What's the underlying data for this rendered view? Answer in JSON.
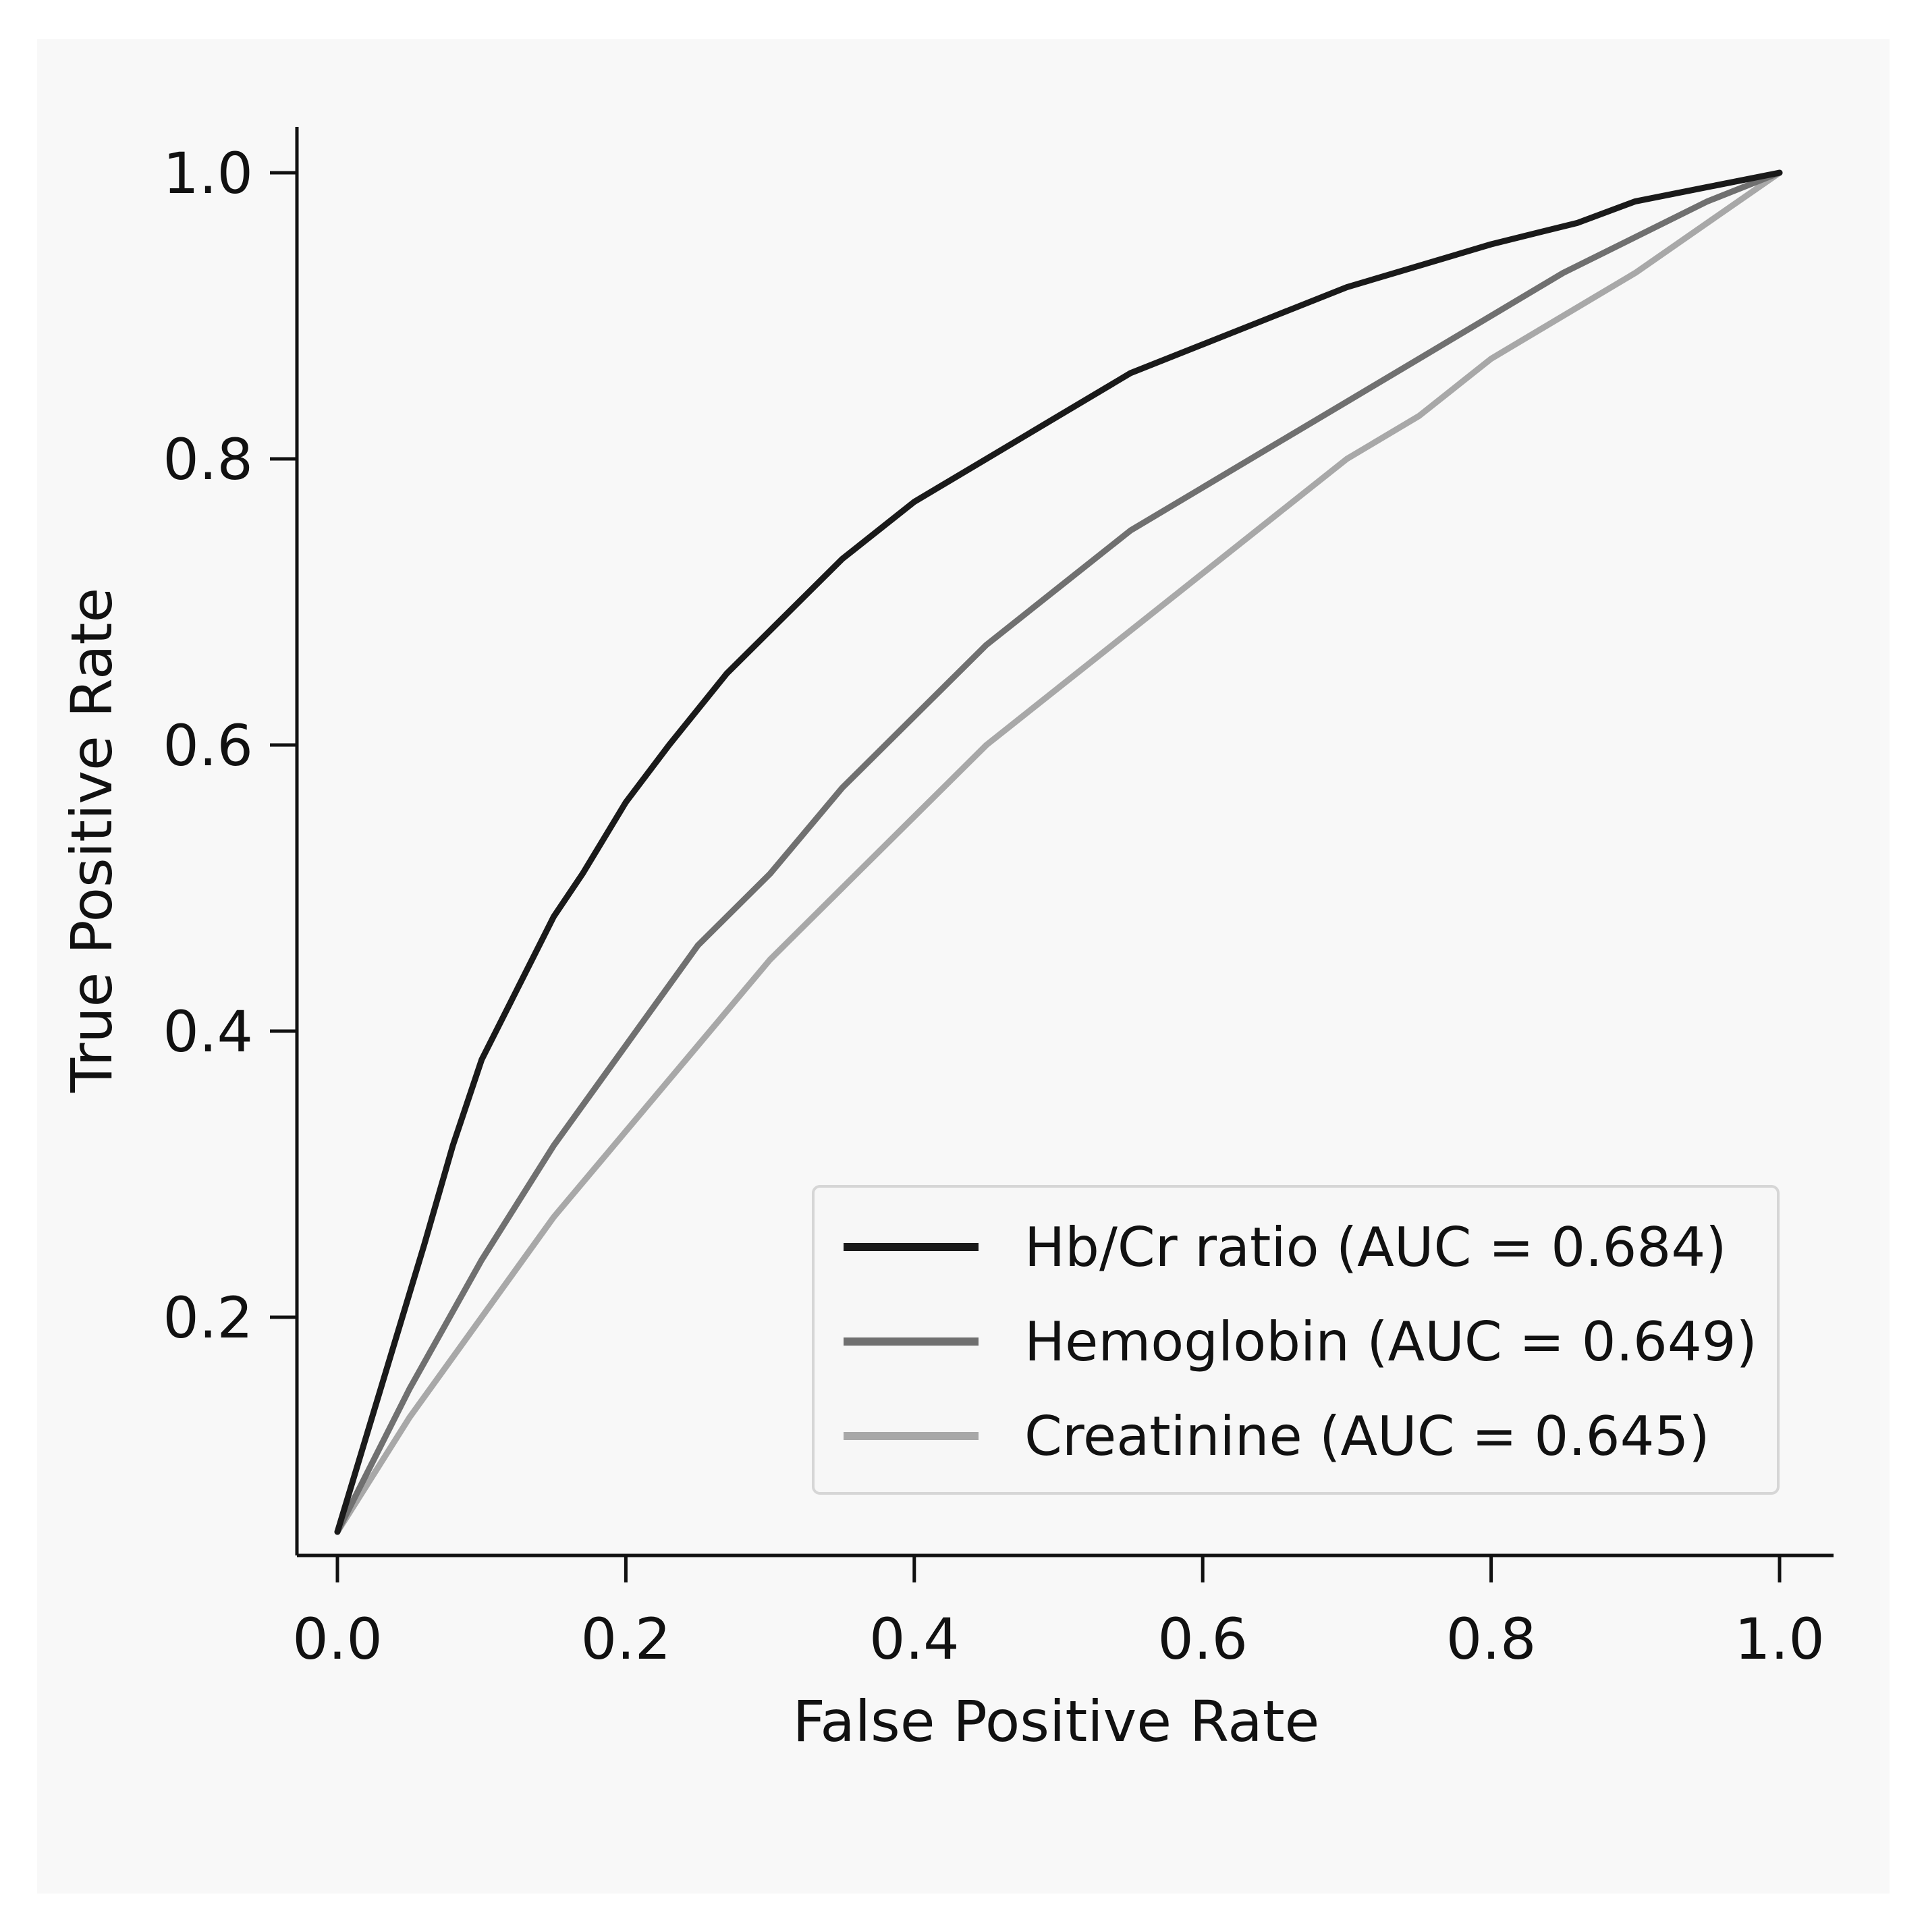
{
  "chart_data": {
    "type": "line",
    "title": "",
    "xlabel": "False Positive Rate",
    "ylabel": "True Positive Rate",
    "xlim": [
      0.0,
      1.0
    ],
    "ylim": [
      0.05,
      1.0
    ],
    "xticks": [
      0.0,
      0.2,
      0.4,
      0.6,
      0.8,
      1.0
    ],
    "xtick_labels": [
      "0.0",
      "0.2",
      "0.4",
      "0.6",
      "0.8",
      "1.0"
    ],
    "yticks": [
      0.2,
      0.4,
      0.6,
      0.8,
      1.0
    ],
    "ytick_labels": [
      "0.2",
      "0.4",
      "0.6",
      "0.8",
      "1.0"
    ],
    "grid": false,
    "legend_position": "bottom-right",
    "series": [
      {
        "name": "Hb/Cr ratio (AUC = 0.684)",
        "color": "#1a1a1a",
        "x": [
          0.0,
          0.03,
          0.06,
          0.08,
          0.1,
          0.13,
          0.15,
          0.17,
          0.2,
          0.23,
          0.27,
          0.3,
          0.35,
          0.4,
          0.45,
          0.5,
          0.55,
          0.6,
          0.65,
          0.7,
          0.75,
          0.8,
          0.86,
          0.9,
          0.95,
          1.0
        ],
        "y": [
          0.05,
          0.15,
          0.25,
          0.32,
          0.38,
          0.44,
          0.48,
          0.51,
          0.56,
          0.6,
          0.65,
          0.68,
          0.73,
          0.77,
          0.8,
          0.83,
          0.86,
          0.88,
          0.9,
          0.92,
          0.935,
          0.95,
          0.965,
          0.98,
          0.99,
          1.0
        ]
      },
      {
        "name": "Hemoglobin (AUC = 0.649)",
        "color": "#707070",
        "x": [
          0.0,
          0.05,
          0.1,
          0.15,
          0.2,
          0.25,
          0.3,
          0.35,
          0.4,
          0.45,
          0.5,
          0.55,
          0.6,
          0.65,
          0.7,
          0.75,
          0.8,
          0.85,
          0.9,
          0.95,
          1.0
        ],
        "y": [
          0.05,
          0.15,
          0.24,
          0.32,
          0.39,
          0.46,
          0.51,
          0.57,
          0.62,
          0.67,
          0.71,
          0.75,
          0.78,
          0.81,
          0.84,
          0.87,
          0.9,
          0.93,
          0.955,
          0.98,
          1.0
        ]
      },
      {
        "name": "Creatinine (AUC = 0.645)",
        "color": "#a8a8a8",
        "x": [
          0.0,
          0.05,
          0.1,
          0.15,
          0.2,
          0.25,
          0.3,
          0.35,
          0.4,
          0.45,
          0.5,
          0.55,
          0.6,
          0.65,
          0.7,
          0.75,
          0.8,
          0.85,
          0.9,
          0.95,
          1.0
        ],
        "y": [
          0.05,
          0.13,
          0.2,
          0.27,
          0.33,
          0.39,
          0.45,
          0.5,
          0.55,
          0.6,
          0.64,
          0.68,
          0.72,
          0.76,
          0.8,
          0.83,
          0.87,
          0.9,
          0.93,
          0.965,
          1.0
        ]
      }
    ]
  }
}
